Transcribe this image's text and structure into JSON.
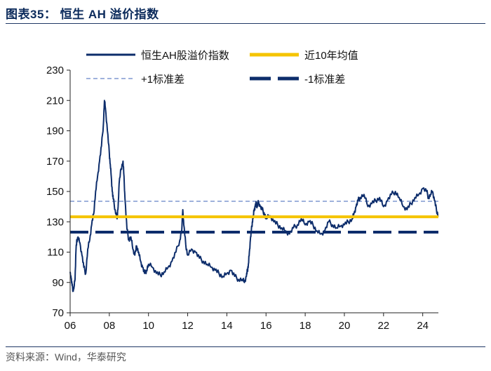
{
  "figure": {
    "title": "图表35：  恒生 AH 溢价指数",
    "source": "资料来源：Wind，华泰研究"
  },
  "chart_data": {
    "type": "line",
    "title": "恒生 AH 溢价指数",
    "xlabel": "",
    "ylabel": "",
    "xlim": [
      2006.0,
      2024.8
    ],
    "ylim": [
      70,
      230
    ],
    "grid": false,
    "legend_position": "top",
    "x_tick_labels": [
      "06",
      "08",
      "10",
      "12",
      "14",
      "16",
      "18",
      "20",
      "22",
      "24"
    ],
    "x_tick_values": [
      2006,
      2008,
      2010,
      2012,
      2014,
      2016,
      2018,
      2020,
      2022,
      2024
    ],
    "y_tick_labels": [
      "70",
      "90",
      "110",
      "130",
      "150",
      "170",
      "190",
      "210",
      "230"
    ],
    "y_tick_values": [
      70,
      90,
      110,
      130,
      150,
      170,
      190,
      210,
      230
    ],
    "colors": {
      "index": "#0d2d6b",
      "mean": "#f5c400",
      "plus1": "#9fb2dc",
      "minus1": "#0d2d6b",
      "axis": "#222222"
    },
    "series": [
      {
        "name": "恒生AH股溢价指数",
        "style": "solid",
        "x": [
          2006.0,
          2006.05,
          2006.1,
          2006.15,
          2006.2,
          2006.25,
          2006.3,
          2006.35,
          2006.4,
          2006.5,
          2006.6,
          2006.7,
          2006.8,
          2006.9,
          2007.0,
          2007.1,
          2007.2,
          2007.3,
          2007.4,
          2007.5,
          2007.6,
          2007.7,
          2007.75,
          2007.8,
          2007.9,
          2008.0,
          2008.05,
          2008.1,
          2008.15,
          2008.2,
          2008.3,
          2008.4,
          2008.45,
          2008.5,
          2008.6,
          2008.7,
          2008.75,
          2008.8,
          2008.9,
          2009.0,
          2009.1,
          2009.2,
          2009.3,
          2009.4,
          2009.5,
          2009.6,
          2009.7,
          2009.8,
          2009.9,
          2010.0,
          2010.2,
          2010.4,
          2010.6,
          2010.8,
          2011.0,
          2011.2,
          2011.4,
          2011.6,
          2011.7,
          2011.75,
          2011.8,
          2011.9,
          2012.0,
          2012.2,
          2012.4,
          2012.6,
          2012.8,
          2013.0,
          2013.2,
          2013.4,
          2013.6,
          2013.8,
          2014.0,
          2014.2,
          2014.4,
          2014.6,
          2014.8,
          2014.9,
          2015.0,
          2015.05,
          2015.1,
          2015.15,
          2015.2,
          2015.25,
          2015.3,
          2015.35,
          2015.4,
          2015.45,
          2015.5,
          2015.55,
          2015.6,
          2015.7,
          2015.8,
          2015.9,
          2016.0,
          2016.2,
          2016.4,
          2016.6,
          2016.8,
          2017.0,
          2017.2,
          2017.4,
          2017.6,
          2017.8,
          2018.0,
          2018.2,
          2018.4,
          2018.6,
          2018.8,
          2019.0,
          2019.2,
          2019.4,
          2019.6,
          2019.8,
          2020.0,
          2020.2,
          2020.4,
          2020.5,
          2020.6,
          2020.7,
          2020.8,
          2021.0,
          2021.2,
          2021.4,
          2021.6,
          2021.8,
          2022.0,
          2022.2,
          2022.4,
          2022.6,
          2022.8,
          2023.0,
          2023.2,
          2023.4,
          2023.6,
          2023.8,
          2024.0,
          2024.2,
          2024.3,
          2024.4,
          2024.5,
          2024.6,
          2024.7,
          2024.8
        ],
        "values": [
          97,
          93,
          88,
          85,
          87,
          92,
          112,
          118,
          120,
          116,
          108,
          100,
          96,
          112,
          118,
          128,
          135,
          150,
          160,
          170,
          180,
          195,
          210,
          205,
          190,
          175,
          168,
          160,
          150,
          145,
          138,
          132,
          140,
          155,
          165,
          170,
          160,
          145,
          125,
          118,
          120,
          112,
          108,
          114,
          110,
          104,
          100,
          96,
          98,
          102,
          100,
          96,
          95,
          97,
          100,
          104,
          110,
          118,
          125,
          138,
          128,
          115,
          108,
          112,
          110,
          106,
          104,
          102,
          100,
          98,
          96,
          94,
          96,
          98,
          94,
          92,
          92,
          90,
          94,
          98,
          102,
          110,
          118,
          124,
          130,
          134,
          138,
          140,
          142,
          140,
          144,
          140,
          138,
          136,
          132,
          134,
          130,
          128,
          126,
          124,
          122,
          126,
          128,
          132,
          128,
          130,
          128,
          124,
          122,
          124,
          130,
          128,
          126,
          127,
          128,
          130,
          132,
          136,
          140,
          144,
          146,
          148,
          140,
          142,
          144,
          146,
          140,
          144,
          148,
          150,
          146,
          140,
          138,
          142,
          146,
          148,
          152,
          150,
          146,
          148,
          150,
          144,
          138,
          134
        ]
      },
      {
        "name": "近10年均值",
        "style": "solid",
        "value": 133.3
      },
      {
        "name": "+1标准差",
        "style": "dashed-light",
        "value": 143.5
      },
      {
        "name": "-1标准差",
        "style": "dashed-heavy",
        "value": 123.2
      }
    ]
  }
}
